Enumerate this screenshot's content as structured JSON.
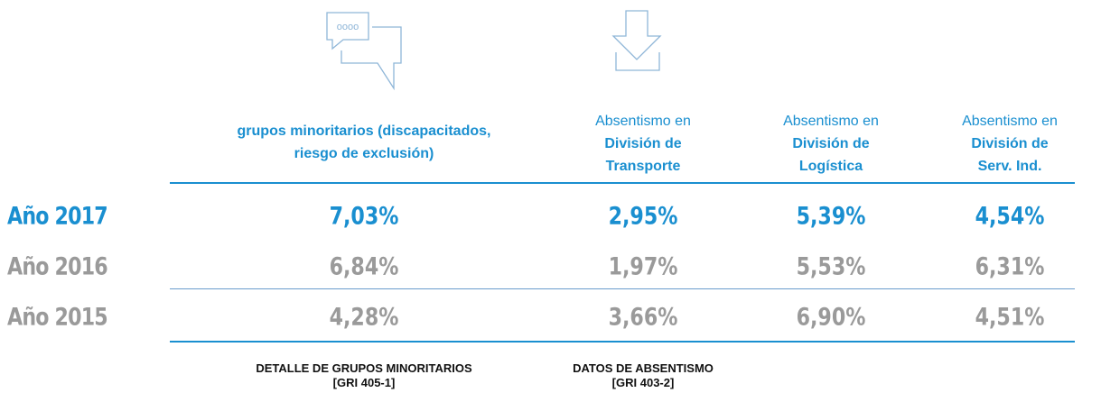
{
  "table": {
    "headers": [
      {
        "bold": [
          "grupos minoritarios (discapacitados,",
          "riesgo de exclusión)"
        ]
      },
      {
        "plain": "Absentismo en",
        "bold": [
          "División de",
          "Transporte"
        ]
      },
      {
        "plain": "Absentismo en",
        "bold": [
          "División de",
          "Logística"
        ]
      },
      {
        "plain": "Absentismo en",
        "bold": [
          "División de",
          "Serv. Ind."
        ]
      }
    ],
    "rows": [
      {
        "label": "Año 2017",
        "values": [
          "7,03%",
          "2,95%",
          "5,39%",
          "4,54%"
        ]
      },
      {
        "label": "Año 2016",
        "values": [
          "6,84%",
          "1,97%",
          "5,53%",
          "6,31%"
        ]
      },
      {
        "label": "Año 2015",
        "values": [
          "4,28%",
          "3,66%",
          "6,90%",
          "4,51%"
        ]
      }
    ],
    "footnotes": [
      {
        "lines": [
          "DETALLE DE GRUPOS MINORITARIOS",
          "[GRI 405-1]"
        ]
      },
      {
        "lines": [
          "DATOS DE ABSENTISMO",
          "[GRI 403-2]"
        ]
      }
    ]
  }
}
